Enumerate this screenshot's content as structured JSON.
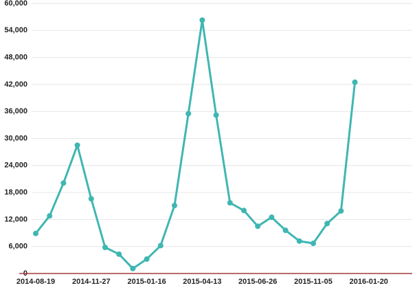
{
  "chart_data": {
    "type": "line",
    "categories": [
      "2014-08-19",
      null,
      null,
      null,
      "2014-11-27",
      null,
      null,
      null,
      "2015-01-16",
      null,
      null,
      null,
      "2015-04-13",
      null,
      null,
      null,
      "2015-06-26",
      null,
      null,
      null,
      "2015-11-05",
      null,
      null,
      null,
      "2016-01-20"
    ],
    "series": [
      {
        "name": null,
        "color": "#3fb6b2",
        "values": [
          8900,
          12800,
          20100,
          28500,
          16600,
          5800,
          4300,
          1100,
          3200,
          6200,
          15100,
          35500,
          56300,
          35200,
          15700,
          14000,
          10500,
          12500,
          9600,
          7200,
          6700,
          11100,
          13900,
          42500,
          null
        ]
      }
    ],
    "ylim": [
      0,
      60000
    ],
    "yticks": [
      0,
      {
        "value": 6000,
        "label": "6,000"
      },
      {
        "value": 12000,
        "label": "12,000"
      },
      {
        "value": 18000,
        "label": "18,000"
      },
      {
        "value": 24000,
        "label": "24,000"
      },
      {
        "value": 30000,
        "label": "30,000"
      },
      {
        "value": 36000,
        "label": "36,000"
      },
      {
        "value": 42000,
        "label": "42,000"
      },
      {
        "value": 48000,
        "label": "48,000"
      },
      {
        "value": 54000,
        "label": "54,000"
      },
      {
        "value": 60000,
        "label": "60,000"
      }
    ],
    "grid": true,
    "axis_color": "#a83a3a"
  }
}
